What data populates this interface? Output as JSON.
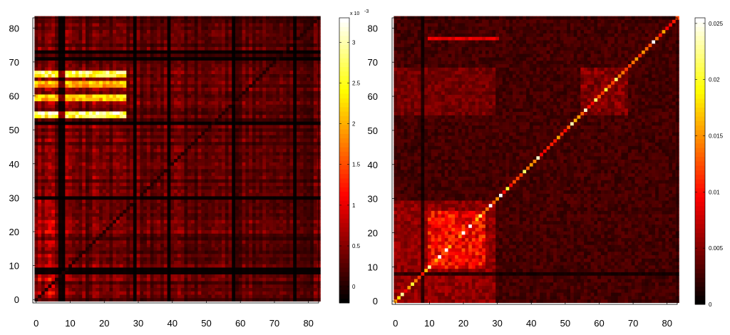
{
  "chart_data": [
    {
      "type": "heatmap",
      "title": "",
      "xlabel": "",
      "ylabel": "",
      "grid_size": 84,
      "xlim": [
        -1,
        83
      ],
      "ylim": [
        -1,
        83
      ],
      "xticks": [
        "0",
        "10",
        "20",
        "30",
        "40",
        "50",
        "60",
        "70",
        "80"
      ],
      "yticks": [
        "0",
        "10",
        "20",
        "30",
        "40",
        "50",
        "60",
        "70",
        "80"
      ],
      "colormap": "hot",
      "diagonal": "near-zero",
      "colorbar": {
        "range": [
          -0.0002,
          0.0033
        ],
        "ticks": [
          {
            "value": 0,
            "label": "0"
          },
          {
            "value": 0.0005,
            "label": "0.5"
          },
          {
            "value": 0.001,
            "label": "1"
          },
          {
            "value": 0.0015,
            "label": "1.5"
          },
          {
            "value": 0.002,
            "label": "2"
          },
          {
            "value": 0.0025,
            "label": "2.5"
          },
          {
            "value": 0.003,
            "label": "3"
          }
        ],
        "exponent_label": "x 10",
        "exponent_power": "-3"
      },
      "bright_rows": [
        {
          "row": 54,
          "level": 0.85
        },
        {
          "row": 55,
          "level": 0.95
        },
        {
          "row": 59,
          "level": 0.7
        },
        {
          "row": 60,
          "level": 0.75
        },
        {
          "row": 63,
          "level": 0.65
        },
        {
          "row": 64,
          "level": 0.7
        },
        {
          "row": 66,
          "level": 0.85
        },
        {
          "row": 67,
          "level": 0.9
        }
      ],
      "bright_col_range": [
        0,
        26
      ],
      "dark_rows": [
        8,
        9,
        30,
        52,
        71,
        73
      ],
      "dark_cols": [
        7,
        8,
        29,
        39,
        58,
        76
      ]
    },
    {
      "type": "heatmap",
      "title": "",
      "xlabel": "",
      "ylabel": "",
      "grid_size": 84,
      "xlim": [
        -1,
        83
      ],
      "ylim": [
        -1,
        83
      ],
      "xticks": [
        "0",
        "10",
        "20",
        "30",
        "40",
        "50",
        "60",
        "70",
        "80"
      ],
      "yticks": [
        "0",
        "10",
        "20",
        "30",
        "40",
        "50",
        "60",
        "70",
        "80"
      ],
      "colormap": "hot",
      "diagonal": "high",
      "colorbar": {
        "range": [
          0,
          0.0255
        ],
        "ticks": [
          {
            "value": 0,
            "label": "0"
          },
          {
            "value": 0.005,
            "label": "0.005"
          },
          {
            "value": 0.01,
            "label": "0.01"
          },
          {
            "value": 0.015,
            "label": "0.015"
          },
          {
            "value": 0.02,
            "label": "0.02"
          },
          {
            "value": 0.025,
            "label": "0.025"
          }
        ]
      },
      "bright_block": {
        "rows": [
          10,
          26
        ],
        "cols": [
          10,
          26
        ],
        "level": 0.4
      },
      "diagonal_values": [
        {
          "i": 1,
          "level": 0.7
        },
        {
          "i": 2,
          "level": 0.9
        },
        {
          "i": 5,
          "level": 0.8
        },
        {
          "i": 10,
          "level": 0.9
        },
        {
          "i": 13,
          "level": 1.0
        },
        {
          "i": 15,
          "level": 1.0
        },
        {
          "i": 20,
          "level": 1.0
        },
        {
          "i": 22,
          "level": 1.0
        },
        {
          "i": 25,
          "level": 0.85
        },
        {
          "i": 28,
          "level": 1.0
        },
        {
          "i": 31,
          "level": 1.0
        },
        {
          "i": 33,
          "level": 0.8
        },
        {
          "i": 38,
          "level": 0.85
        },
        {
          "i": 42,
          "level": 0.95
        },
        {
          "i": 52,
          "level": 0.92
        },
        {
          "i": 56,
          "level": 0.95
        },
        {
          "i": 59,
          "level": 0.85
        },
        {
          "i": 62,
          "level": 0.8
        },
        {
          "i": 65,
          "level": 0.85
        },
        {
          "i": 71,
          "level": 0.6
        },
        {
          "i": 76,
          "level": 1.0
        }
      ]
    }
  ]
}
